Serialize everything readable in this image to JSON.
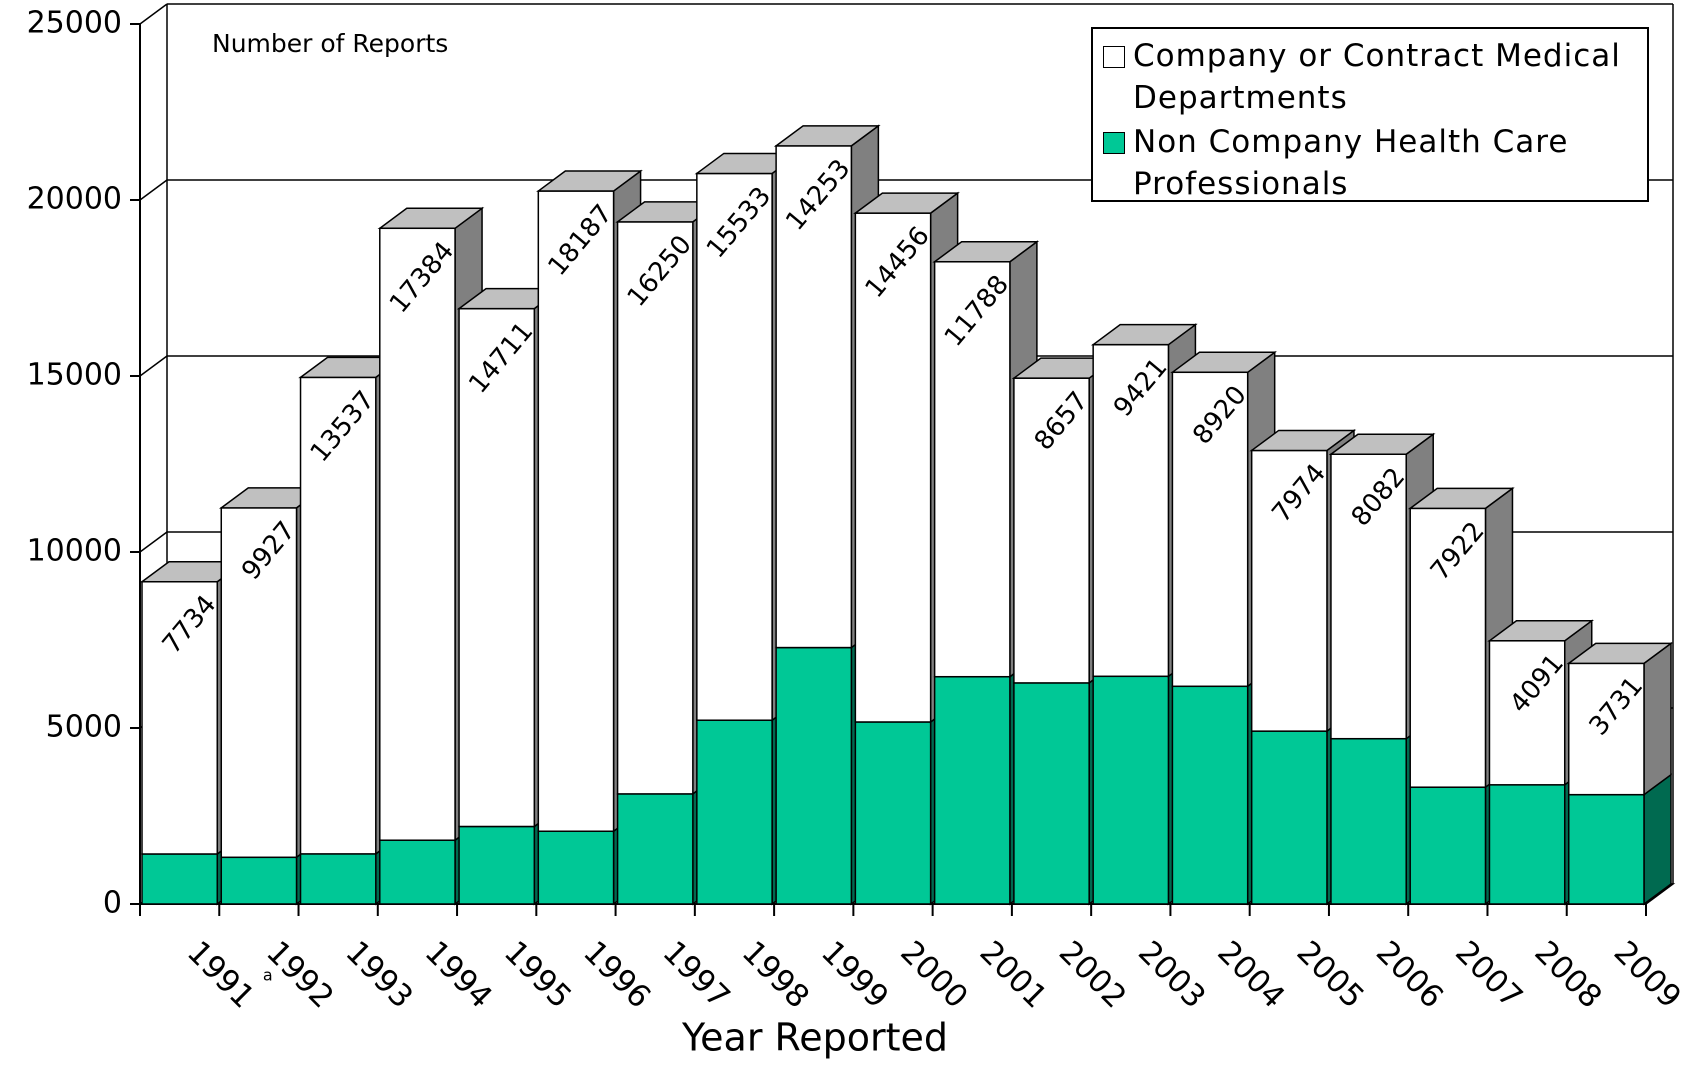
{
  "chart_data": {
    "type": "stacked-bar-3d",
    "y_label": "Number of Reports",
    "x_label": "Year Reported",
    "categories": [
      "1991",
      "1992",
      "1993",
      "1994",
      "1995",
      "1996",
      "1997",
      "1998",
      "1999",
      "2000",
      "2001",
      "2002",
      "2003",
      "2004",
      "2005",
      "2006",
      "2007",
      "2008",
      "2009"
    ],
    "category_marks": [
      null,
      "a",
      null,
      null,
      null,
      null,
      null,
      null,
      null,
      null,
      null,
      null,
      null,
      null,
      null,
      null,
      null,
      null,
      null
    ],
    "series": [
      {
        "name": "Non Company Health Care Professionals",
        "color": "#00c896",
        "side_color": "#006a50",
        "values": [
          1421,
          1327,
          1424,
          1812,
          2202,
          2067,
          3128,
          5221,
          7285,
          5171,
          6457,
          6281,
          6469,
          6185,
          4911,
          4696,
          3318,
          3386,
          3106
        ]
      },
      {
        "name": "Company or Contract Medical Departments",
        "color": "#ffffff",
        "side_color": "#808080",
        "values": [
          7734,
          9927,
          13537,
          17384,
          14711,
          18187,
          16250,
          15533,
          14253,
          14456,
          11788,
          8657,
          9421,
          8920,
          7974,
          8082,
          7922,
          4091,
          3731
        ]
      }
    ],
    "ylim": [
      0,
      25000
    ],
    "yticks": [
      0,
      5000,
      10000,
      15000,
      20000,
      25000
    ],
    "grid": true
  }
}
